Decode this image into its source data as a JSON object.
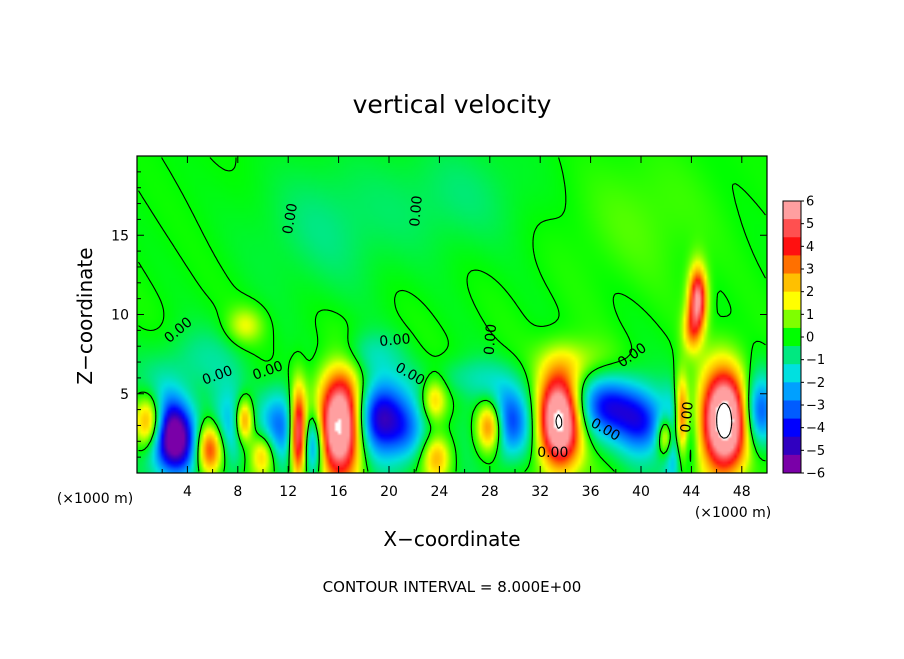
{
  "chart_data": {
    "type": "heatmap",
    "title": "vertical velocity",
    "xlabel": "X−coordinate",
    "ylabel": "Z−coordinate",
    "x_unit_label": "(×1000 m)",
    "x_unit_label_right": "(×1000 m)",
    "footer": "CONTOUR INTERVAL = 8.000E+00",
    "xlim": [
      0,
      50
    ],
    "ylim": [
      0,
      20
    ],
    "x_ticks": [
      4,
      8,
      12,
      16,
      20,
      24,
      28,
      32,
      36,
      40,
      44,
      48
    ],
    "x_tick_labels": [
      "4",
      "8",
      "12",
      "16",
      "20",
      "24",
      "28",
      "32",
      "36",
      "40",
      "44",
      "48"
    ],
    "y_ticks": [
      5,
      10,
      15
    ],
    "y_tick_labels": [
      "5",
      "10",
      "15"
    ],
    "colorbar": {
      "min": -6,
      "max": 6,
      "tick_labels": [
        "6",
        "5",
        "4",
        "3",
        "2",
        "1",
        "0",
        "−1",
        "−2",
        "−3",
        "−4",
        "−5",
        "−6"
      ],
      "colors": [
        "#7a00a8",
        "#3000c0",
        "#0000ff",
        "#005cff",
        "#00a0ff",
        "#00e0e0",
        "#00e880",
        "#00ff00",
        "#7fff00",
        "#ffff00",
        "#ffc000",
        "#ff7000",
        "#ff1010",
        "#ff5050",
        "#ff9fa0"
      ]
    },
    "contour_labels": [
      "0.00",
      "0.00",
      "0.00",
      "0.00",
      "0.00",
      "0.00",
      "0.00",
      "0.00",
      "0.00",
      "0.00",
      "0.00",
      "0.00"
    ],
    "cells": [
      {
        "x": 1.0,
        "z": 3.2,
        "v": 6.8,
        "sx": 0.9,
        "sz": 1.3
      },
      {
        "x": 1.6,
        "z": 3.0,
        "v": -4.5,
        "sx": 1.4,
        "sz": 1.8
      },
      {
        "x": 3.2,
        "z": 2.0,
        "v": -5.0,
        "sx": 1.2,
        "sz": 1.6
      },
      {
        "x": 5.8,
        "z": 1.5,
        "v": 5.2,
        "sx": 0.8,
        "sz": 1.2
      },
      {
        "x": 7.2,
        "z": 2.6,
        "v": -2.8,
        "sx": 1.1,
        "sz": 1.8
      },
      {
        "x": 8.5,
        "z": 3.3,
        "v": 4.2,
        "sx": 0.5,
        "sz": 1.0
      },
      {
        "x": 10.0,
        "z": 1.2,
        "v": 3.0,
        "sx": 0.7,
        "sz": 1.0
      },
      {
        "x": 11.3,
        "z": 3.0,
        "v": -3.2,
        "sx": 1.1,
        "sz": 1.6
      },
      {
        "x": 12.8,
        "z": 2.5,
        "v": 6.5,
        "sx": 0.45,
        "sz": 2.0
      },
      {
        "x": 14.0,
        "z": 1.8,
        "v": -4.0,
        "sx": 0.6,
        "sz": 1.4
      },
      {
        "x": 16.2,
        "z": 3.1,
        "v": 9.0,
        "sx": 1.25,
        "sz": 2.3
      },
      {
        "x": 19.2,
        "z": 3.5,
        "v": -5.5,
        "sx": 1.6,
        "sz": 1.7
      },
      {
        "x": 21.5,
        "z": 2.5,
        "v": -2.0,
        "sx": 1.1,
        "sz": 1.4
      },
      {
        "x": 23.6,
        "z": 4.6,
        "v": 2.6,
        "sx": 0.7,
        "sz": 1.0
      },
      {
        "x": 23.8,
        "z": 1.0,
        "v": 2.8,
        "sx": 0.8,
        "sz": 1.0
      },
      {
        "x": 28.0,
        "z": 3.0,
        "v": 6.2,
        "sx": 0.8,
        "sz": 1.2
      },
      {
        "x": 29.0,
        "z": 3.2,
        "v": -4.5,
        "sx": 1.6,
        "sz": 1.6
      },
      {
        "x": 33.5,
        "z": 3.3,
        "v": 8.5,
        "sx": 1.2,
        "sz": 2.1
      },
      {
        "x": 37.5,
        "z": 4.2,
        "v": -4.2,
        "sx": 2.0,
        "sz": 1.4
      },
      {
        "x": 40.2,
        "z": 3.0,
        "v": -3.2,
        "sx": 1.3,
        "sz": 1.4
      },
      {
        "x": 42.0,
        "z": 2.3,
        "v": 5.0,
        "sx": 0.5,
        "sz": 1.0
      },
      {
        "x": 43.2,
        "z": 3.0,
        "v": 6.5,
        "sx": 0.4,
        "sz": 1.9
      },
      {
        "x": 42.8,
        "z": 2.0,
        "v": -5.0,
        "sx": 0.8,
        "sz": 1.8
      },
      {
        "x": 44.5,
        "z": 11.0,
        "v": 6.0,
        "sx": 0.5,
        "sz": 1.4
      },
      {
        "x": 44.0,
        "z": 9.0,
        "v": 2.5,
        "sx": 0.5,
        "sz": 1.0
      },
      {
        "x": 46.6,
        "z": 3.2,
        "v": 9.0,
        "sx": 1.3,
        "sz": 2.3
      },
      {
        "x": 49.3,
        "z": 3.8,
        "v": -4.0,
        "sx": 0.9,
        "sz": 1.6
      },
      {
        "x": 8.6,
        "z": 9.3,
        "v": 1.6,
        "sx": 1.0,
        "sz": 0.8
      },
      {
        "x": 18.0,
        "z": 7.5,
        "v": -1.2,
        "sx": 2.0,
        "sz": 1.0
      },
      {
        "x": 26.0,
        "z": 6.0,
        "v": -1.0,
        "sx": 2.5,
        "sz": 0.9
      },
      {
        "x": 35.0,
        "z": 7.0,
        "v": 1.2,
        "sx": 2.0,
        "sz": 1.0
      },
      {
        "x": 15.0,
        "z": 15.5,
        "v": -0.8,
        "sx": 4.0,
        "sz": 3.0
      },
      {
        "x": 25.5,
        "z": 17.5,
        "v": -0.7,
        "sx": 4.0,
        "sz": 2.5
      },
      {
        "x": 40.0,
        "z": 16.0,
        "v": 0.5,
        "sx": 4.0,
        "sz": 3.0
      },
      {
        "x": 5.0,
        "z": 7.0,
        "v": -1.0,
        "sx": 2.5,
        "sz": 1.5
      }
    ]
  }
}
